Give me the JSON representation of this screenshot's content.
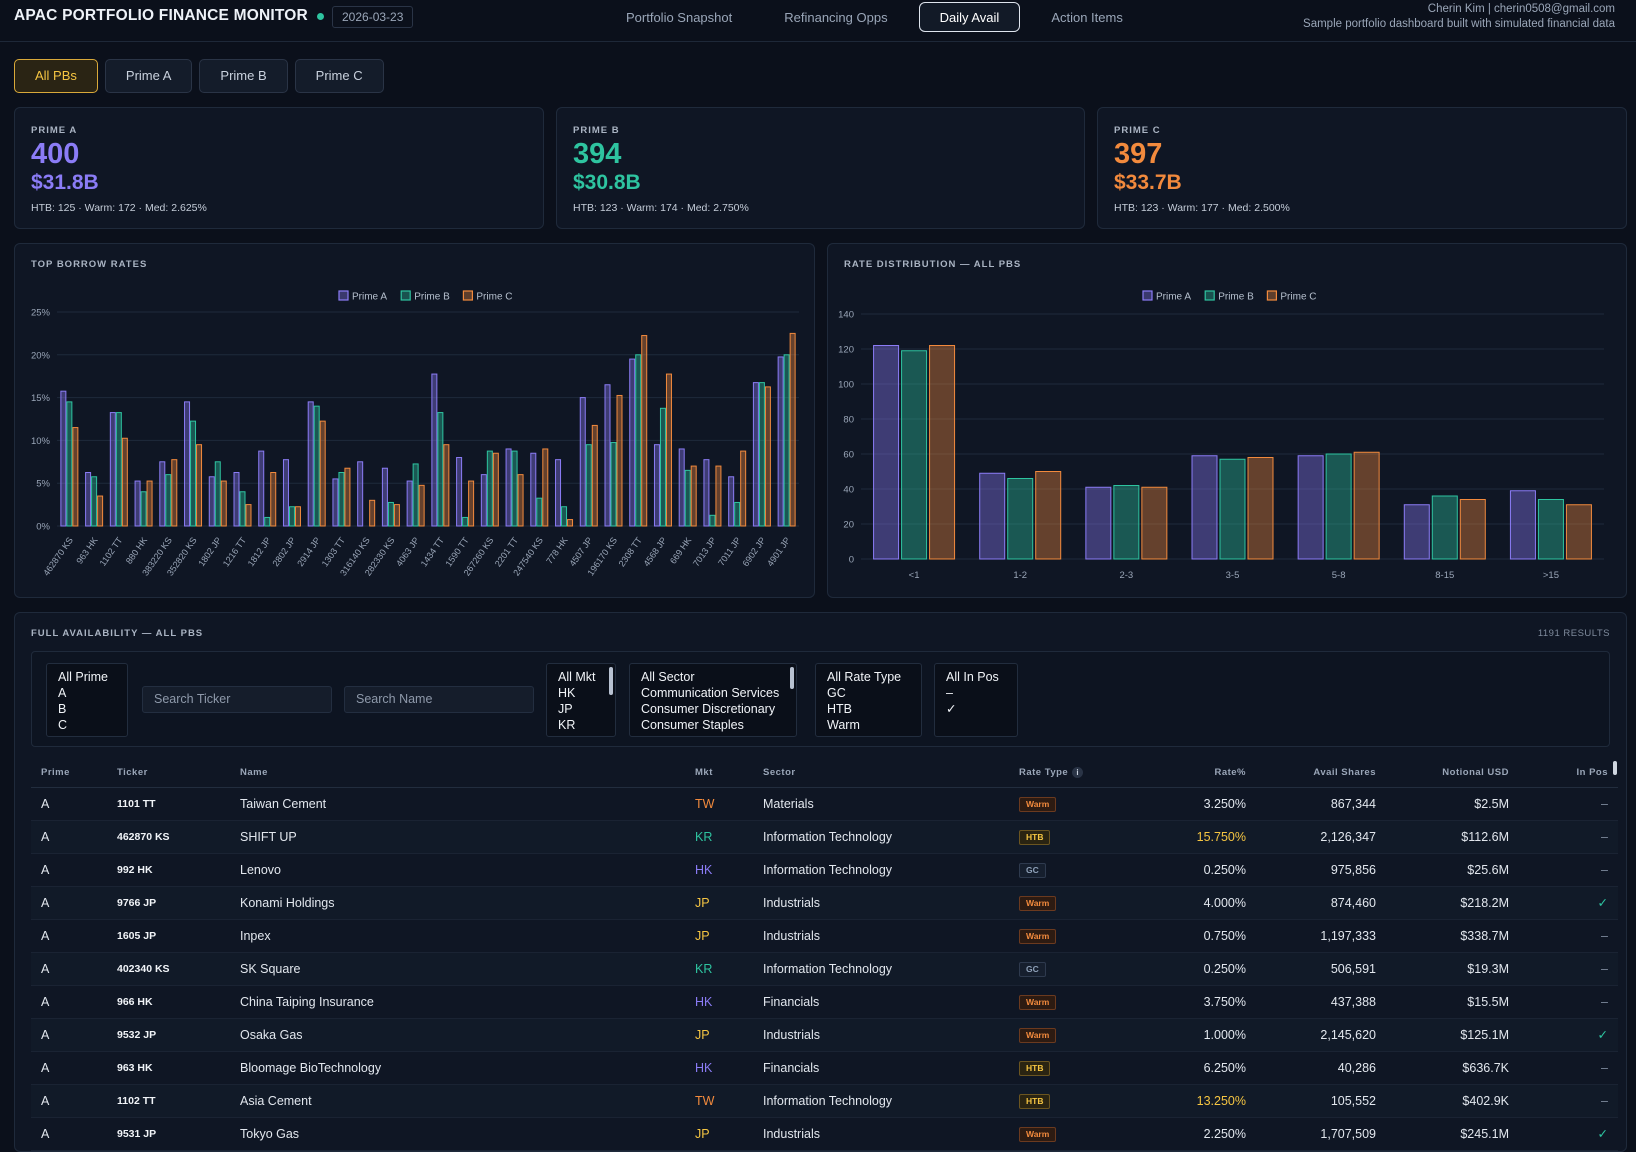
{
  "header": {
    "title": "APAC PORTFOLIO FINANCE MONITOR",
    "date": "2026-03-23",
    "tabs": [
      {
        "label": "Portfolio Snapshot",
        "active": false
      },
      {
        "label": "Refinancing Opps",
        "active": false
      },
      {
        "label": "Daily Avail",
        "active": true
      },
      {
        "label": "Action Items",
        "active": false
      }
    ],
    "user": "Cherin Kim | cherin0508@gmail.com",
    "subtitle": "Sample portfolio dashboard built with simulated financial data"
  },
  "pb_filter": [
    "All PBs",
    "Prime A",
    "Prime B",
    "Prime C"
  ],
  "pb_filter_active": "All PBs",
  "colors": {
    "prime_a": "#8b7cf6",
    "prime_b": "#2ec4a0",
    "prime_c": "#f28a3d",
    "accent": "#f5c542"
  },
  "summary": [
    {
      "label": "PRIME A",
      "count": "400",
      "notional": "$31.8B",
      "meta": "HTB: 125 · Warm: 172 · Med: 2.625%",
      "color": "#8b7cf6"
    },
    {
      "label": "PRIME B",
      "count": "394",
      "notional": "$30.8B",
      "meta": "HTB: 123 · Warm: 174 · Med: 2.750%",
      "color": "#2ec4a0"
    },
    {
      "label": "PRIME C",
      "count": "397",
      "notional": "$33.7B",
      "meta": "HTB: 123 · Warm: 177 · Med: 2.500%",
      "color": "#f28a3d"
    }
  ],
  "charts": {
    "top_borrow_title": "TOP BORROW RATES",
    "dist_title": "RATE DISTRIBUTION — ALL PBS"
  },
  "chart_data": [
    {
      "type": "bar",
      "title": "TOP BORROW RATES",
      "legend": [
        "Prime A",
        "Prime B",
        "Prime C"
      ],
      "legend_position": "top",
      "ylim": [
        0,
        25
      ],
      "yticks": [
        "0%",
        "5%",
        "10%",
        "15%",
        "20%",
        "25%"
      ],
      "grid": true,
      "categories": [
        "462870 KS",
        "963 HK",
        "1102 TT",
        "880 HK",
        "383220 KS",
        "352820 KS",
        "1802 JP",
        "1216 TT",
        "1812 JP",
        "2802 JP",
        "2914 JP",
        "1303 TT",
        "316140 KS",
        "282330 KS",
        "4063 JP",
        "1434 TT",
        "1590 TT",
        "267260 KS",
        "2201 TT",
        "247540 KS",
        "778 HK",
        "4507 JP",
        "196170 KS",
        "2308 TT",
        "4568 JP",
        "669 HK",
        "7013 JP",
        "7011 JP",
        "6902 JP",
        "4901 JP"
      ],
      "series": [
        {
          "name": "Prime A",
          "values": [
            15.75,
            6.25,
            13.25,
            5.25,
            7.5,
            14.5,
            5.75,
            6.25,
            8.75,
            7.75,
            14.5,
            5.5,
            7.5,
            6.75,
            5.25,
            17.75,
            8,
            6,
            9,
            8.5,
            7.75,
            15,
            16.5,
            19.5,
            9.5,
            9,
            7.75,
            5.75,
            16.75,
            19.75
          ]
        },
        {
          "name": "Prime B",
          "values": [
            14.5,
            5.75,
            13.25,
            4,
            6,
            12.25,
            7.5,
            4,
            1,
            2.25,
            14,
            6.25,
            0,
            2.75,
            7.25,
            13.25,
            1,
            8.75,
            8.75,
            3.25,
            2.25,
            9.5,
            9.75,
            20,
            13.75,
            6.5,
            1.25,
            2.75,
            16.75,
            20
          ]
        },
        {
          "name": "Prime C",
          "values": [
            11.5,
            3.5,
            10.25,
            5.25,
            7.75,
            9.5,
            5.25,
            2.5,
            6.25,
            2.25,
            12.25,
            6.75,
            3,
            2.5,
            4.75,
            9.5,
            5.25,
            8.5,
            6,
            9,
            0.75,
            11.75,
            15.25,
            22.25,
            17.75,
            7,
            7,
            8.75,
            16.25,
            22.5
          ]
        }
      ]
    },
    {
      "type": "bar",
      "title": "RATE DISTRIBUTION — ALL PBS",
      "legend": [
        "Prime A",
        "Prime B",
        "Prime C"
      ],
      "legend_position": "top",
      "ylim": [
        0,
        140
      ],
      "yticks": [
        "0",
        "20",
        "40",
        "60",
        "80",
        "100",
        "120",
        "140"
      ],
      "grid": true,
      "categories": [
        "<1",
        "1-2",
        "2-3",
        "3-5",
        "5-8",
        "8-15",
        ">15"
      ],
      "series": [
        {
          "name": "Prime A",
          "values": [
            122,
            49,
            41,
            59,
            59,
            31,
            39
          ]
        },
        {
          "name": "Prime B",
          "values": [
            119,
            46,
            42,
            57,
            60,
            36,
            34
          ]
        },
        {
          "name": "Prime C",
          "values": [
            122,
            50,
            41,
            58,
            61,
            34,
            31
          ]
        }
      ]
    }
  ],
  "table": {
    "title": "FULL AVAILABILITY — ALL PBS",
    "results": "1191 RESULTS",
    "filters": {
      "prime": [
        "All Prime",
        "A",
        "B",
        "C"
      ],
      "ticker_placeholder": "Search Ticker",
      "name_placeholder": "Search Name",
      "mkt": [
        "All Mkt",
        "HK",
        "JP",
        "KR"
      ],
      "sector": [
        "All Sector",
        "Communication Services",
        "Consumer Discretionary",
        "Consumer Staples"
      ],
      "rate_type": [
        "All Rate Type",
        "GC",
        "HTB",
        "Warm"
      ],
      "in_pos": [
        "All In Pos",
        "–",
        "✓"
      ]
    },
    "columns": [
      "Prime",
      "Ticker",
      "Name",
      "Mkt",
      "Sector",
      "Rate Type",
      "Rate%",
      "Avail Shares",
      "Notional USD",
      "In Pos"
    ],
    "rows": [
      {
        "prime": "A",
        "ticker": "1101 TT",
        "name": "Taiwan Cement",
        "mkt": "TW",
        "sector": "Materials",
        "rate_type": "Warm",
        "rate": "3.250%",
        "shares": "867,344",
        "notional": "$2.5M",
        "in_pos": "–"
      },
      {
        "prime": "A",
        "ticker": "462870 KS",
        "name": "SHIFT UP",
        "mkt": "KR",
        "sector": "Information Technology",
        "rate_type": "HTB",
        "rate": "15.750%",
        "shares": "2,126,347",
        "notional": "$112.6M",
        "in_pos": "–"
      },
      {
        "prime": "A",
        "ticker": "992 HK",
        "name": "Lenovo",
        "mkt": "HK",
        "sector": "Information Technology",
        "rate_type": "GC",
        "rate": "0.250%",
        "shares": "975,856",
        "notional": "$25.6M",
        "in_pos": "–"
      },
      {
        "prime": "A",
        "ticker": "9766 JP",
        "name": "Konami Holdings",
        "mkt": "JP",
        "sector": "Industrials",
        "rate_type": "Warm",
        "rate": "4.000%",
        "shares": "874,460",
        "notional": "$218.2M",
        "in_pos": "✓"
      },
      {
        "prime": "A",
        "ticker": "1605 JP",
        "name": "Inpex",
        "mkt": "JP",
        "sector": "Industrials",
        "rate_type": "Warm",
        "rate": "0.750%",
        "shares": "1,197,333",
        "notional": "$338.7M",
        "in_pos": "–"
      },
      {
        "prime": "A",
        "ticker": "402340 KS",
        "name": "SK Square",
        "mkt": "KR",
        "sector": "Information Technology",
        "rate_type": "GC",
        "rate": "0.250%",
        "shares": "506,591",
        "notional": "$19.3M",
        "in_pos": "–"
      },
      {
        "prime": "A",
        "ticker": "966 HK",
        "name": "China Taiping Insurance",
        "mkt": "HK",
        "sector": "Financials",
        "rate_type": "Warm",
        "rate": "3.750%",
        "shares": "437,388",
        "notional": "$15.5M",
        "in_pos": "–"
      },
      {
        "prime": "A",
        "ticker": "9532 JP",
        "name": "Osaka Gas",
        "mkt": "JP",
        "sector": "Industrials",
        "rate_type": "Warm",
        "rate": "1.000%",
        "shares": "2,145,620",
        "notional": "$125.1M",
        "in_pos": "✓"
      },
      {
        "prime": "A",
        "ticker": "963 HK",
        "name": "Bloomage BioTechnology",
        "mkt": "HK",
        "sector": "Financials",
        "rate_type": "HTB",
        "rate": "6.250%",
        "shares": "40,286",
        "notional": "$636.7K",
        "in_pos": "–"
      },
      {
        "prime": "A",
        "ticker": "1102 TT",
        "name": "Asia Cement",
        "mkt": "TW",
        "sector": "Information Technology",
        "rate_type": "HTB",
        "rate": "13.250%",
        "shares": "105,552",
        "notional": "$402.9K",
        "in_pos": "–"
      },
      {
        "prime": "A",
        "ticker": "9531 JP",
        "name": "Tokyo Gas",
        "mkt": "JP",
        "sector": "Industrials",
        "rate_type": "Warm",
        "rate": "2.250%",
        "shares": "1,707,509",
        "notional": "$245.1M",
        "in_pos": "✓"
      }
    ]
  }
}
